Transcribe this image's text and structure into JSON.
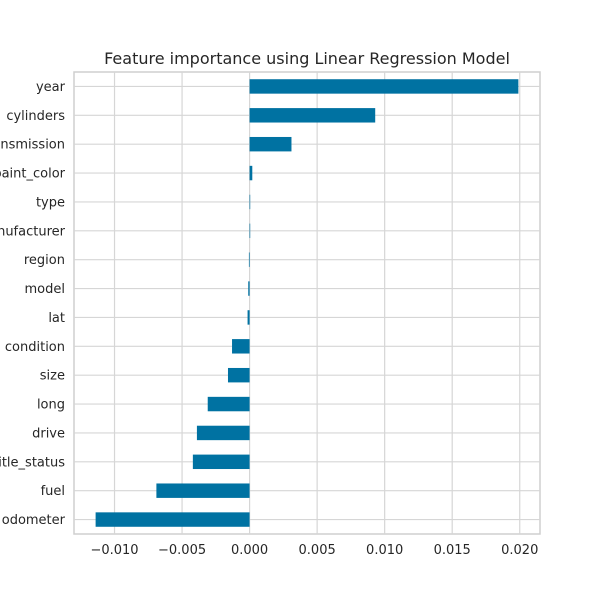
{
  "chart_data": {
    "type": "bar",
    "orientation": "horizontal",
    "title": "Feature importance using Linear Regression Model",
    "xlabel": "",
    "ylabel": "",
    "categories": [
      "year",
      "cylinders",
      "transmission",
      "paint_color",
      "type",
      "manufacturer",
      "region",
      "model",
      "lat",
      "condition",
      "size",
      "long",
      "drive",
      "title_status",
      "fuel",
      "odometer"
    ],
    "values": [
      0.0199,
      0.0093,
      0.0031,
      0.0002,
      3e-05,
      0.0,
      -5e-05,
      -0.0001,
      -0.00015,
      -0.0013,
      -0.0016,
      -0.0031,
      -0.0039,
      -0.0042,
      -0.0069,
      -0.0114
    ],
    "xlim": [
      -0.013,
      0.0215
    ],
    "xticks": [
      -0.01,
      -0.005,
      0.0,
      0.005,
      0.01,
      0.015,
      0.02
    ],
    "xtick_labels": [
      "−0.010",
      "−0.005",
      "0.000",
      "0.005",
      "0.010",
      "0.015",
      "0.020"
    ],
    "bar_color": "#0072a2",
    "grid": true
  }
}
